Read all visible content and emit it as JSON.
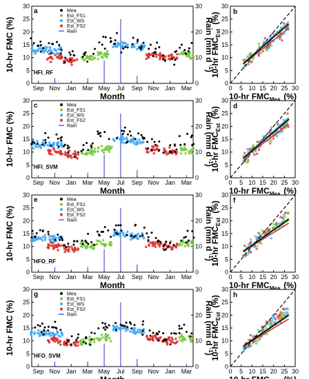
{
  "figure": {
    "colors": {
      "Mea": "#000000",
      "Est_FS1": "#7ac943",
      "Est_WS": "#3fa9f5",
      "Est_FS2": "#d9302f",
      "Rain": "#3333cc",
      "one_to_one": "#000000"
    },
    "ts_xlabel": "Month",
    "ts_ylabel": "10-hr FMC (%)",
    "ts_y2label": "Rain (mm d",
    "ts_y2label_sup": "-1",
    "ts_y2label_end": ")",
    "sc_xlabel": "10-hr FMC",
    "sc_xlabel_sub": "Mea",
    "sc_xlabel_end": "(%)",
    "sc_ylabel": "10-hr FMC",
    "sc_ylabel_sub": "Est",
    "sc_ylabel_end": "(%)",
    "yticks": [
      "0",
      "5",
      "10",
      "15",
      "20",
      "25",
      "30"
    ],
    "y2ticks": [
      "0",
      "10",
      "20",
      "30"
    ],
    "month_ticks": [
      "Sep",
      "Nov",
      "Jan",
      "Mar",
      "May",
      "Jul",
      "Sep",
      "Nov",
      "Jan",
      "Mar"
    ]
  },
  "chart_data": [
    {
      "type": "scatter",
      "panel": "a",
      "model": "HFI_RF",
      "x": [
        "Sep",
        "Nov",
        "Jan",
        "Mar",
        "May",
        "Jul",
        "Sep",
        "Nov",
        "Jan",
        "Mar"
      ],
      "ylim": [
        0,
        30
      ],
      "y2lim": [
        0,
        30
      ],
      "legend": [
        "Mea",
        "Est_FS1",
        "Est_WS",
        "Est_FS2",
        "Rain"
      ],
      "legend_position": "top-left",
      "series": [
        {
          "name": "Mea",
          "values": [
            15,
            14,
            11,
            11,
            16,
            16,
            16,
            13,
            11,
            14
          ]
        },
        {
          "name": "Est_FS1",
          "values": [
            null,
            null,
            null,
            10,
            11,
            null,
            null,
            null,
            null,
            11
          ]
        },
        {
          "name": "Est_WS",
          "values": [
            13,
            13,
            null,
            null,
            null,
            15,
            14,
            null,
            null,
            null
          ]
        },
        {
          "name": "Est_FS2",
          "values": [
            null,
            10,
            9,
            null,
            null,
            null,
            null,
            11,
            10,
            null
          ]
        },
        {
          "name": "Rain",
          "values": [
            1,
            2,
            1,
            2,
            9,
            25,
            3,
            1,
            1,
            1
          ]
        }
      ]
    },
    {
      "type": "scatter",
      "panel": "b",
      "xlim": [
        0,
        30
      ],
      "ylim": [
        0,
        30
      ],
      "one_to_one_line": true,
      "fit_lines": [
        {
          "name": "Est_FS1",
          "slope": 0.72,
          "intercept": 3.6
        },
        {
          "name": "Est_WS",
          "slope": 0.78,
          "intercept": 3.0
        },
        {
          "name": "Est_FS2",
          "slope": 0.66,
          "intercept": 3.6
        },
        {
          "name": "Mea",
          "slope": 0.74,
          "intercept": 3.2
        }
      ]
    },
    {
      "type": "scatter",
      "panel": "c",
      "model": "HFI_SVM",
      "x": [
        "Sep",
        "Nov",
        "Jan",
        "Mar",
        "May",
        "Jul",
        "Sep",
        "Nov",
        "Jan",
        "Mar"
      ],
      "ylim": [
        0,
        30
      ],
      "y2lim": [
        0,
        30
      ],
      "legend": [
        "Mea",
        "Est_FS1",
        "Est_WS",
        "Est_FS2",
        "Rain"
      ],
      "legend_position": "top-left",
      "series": [
        {
          "name": "Mea",
          "values": [
            15,
            14,
            11,
            11,
            16,
            16,
            16,
            13,
            11,
            14
          ]
        },
        {
          "name": "Est_FS1",
          "values": [
            null,
            null,
            null,
            10,
            11,
            null,
            null,
            null,
            null,
            11
          ]
        },
        {
          "name": "Est_WS",
          "values": [
            13,
            13,
            null,
            null,
            null,
            15,
            14,
            null,
            null,
            null
          ]
        },
        {
          "name": "Est_FS2",
          "values": [
            null,
            10,
            9,
            null,
            null,
            null,
            null,
            11,
            10,
            null
          ]
        },
        {
          "name": "Rain",
          "values": [
            1,
            2,
            1,
            2,
            9,
            25,
            3,
            1,
            1,
            1
          ]
        }
      ]
    },
    {
      "type": "scatter",
      "panel": "d",
      "xlim": [
        0,
        30
      ],
      "ylim": [
        0,
        30
      ],
      "one_to_one_line": true,
      "fit_lines": [
        {
          "name": "Est_FS1",
          "slope": 0.7,
          "intercept": 3.6
        },
        {
          "name": "Est_WS",
          "slope": 0.75,
          "intercept": 3.2
        },
        {
          "name": "Est_FS2",
          "slope": 0.62,
          "intercept": 4.0
        },
        {
          "name": "Mea",
          "slope": 0.72,
          "intercept": 3.3
        }
      ]
    },
    {
      "type": "scatter",
      "panel": "e",
      "model": "HFO_RF",
      "x": [
        "Sep",
        "Nov",
        "Jan",
        "Mar",
        "May",
        "Jul",
        "Sep",
        "Nov",
        "Jan",
        "Mar"
      ],
      "ylim": [
        0,
        30
      ],
      "y2lim": [
        0,
        30
      ],
      "legend": [
        "Mea",
        "Est_FS1",
        "Est_WS",
        "Est_FS2",
        "Rain"
      ],
      "legend_position": "top-left",
      "series": [
        {
          "name": "Mea",
          "values": [
            15,
            14,
            11,
            11,
            16,
            16,
            16,
            13,
            11,
            14
          ]
        },
        {
          "name": "Est_FS1",
          "values": [
            null,
            null,
            null,
            10,
            11,
            null,
            null,
            null,
            null,
            11
          ]
        },
        {
          "name": "Est_WS",
          "values": [
            13,
            13,
            null,
            null,
            null,
            15,
            14,
            null,
            null,
            null
          ]
        },
        {
          "name": "Est_FS2",
          "values": [
            null,
            10,
            9,
            null,
            null,
            null,
            null,
            11,
            10,
            null
          ]
        },
        {
          "name": "Rain",
          "values": [
            1,
            2,
            1,
            2,
            9,
            25,
            3,
            1,
            1,
            1
          ]
        }
      ]
    },
    {
      "type": "scatter",
      "panel": "f",
      "xlim": [
        0,
        30
      ],
      "ylim": [
        0,
        30
      ],
      "one_to_one_line": true,
      "fit_lines": [
        {
          "name": "Est_FS1",
          "slope": 0.62,
          "intercept": 4.2
        },
        {
          "name": "Est_WS",
          "slope": 0.58,
          "intercept": 4.8
        },
        {
          "name": "Est_FS2",
          "slope": 0.52,
          "intercept": 5.0
        },
        {
          "name": "Mea",
          "slope": 0.6,
          "intercept": 4.4
        }
      ]
    },
    {
      "type": "scatter",
      "panel": "g",
      "model": "HFO_SVM",
      "x": [
        "Sep",
        "Nov",
        "Jan",
        "Mar",
        "May",
        "Jul",
        "Sep",
        "Nov",
        "Jan",
        "Mar"
      ],
      "ylim": [
        0,
        30
      ],
      "y2lim": [
        0,
        30
      ],
      "legend": [
        "Mea",
        "Est_FS1",
        "Est_WS",
        "Est_FS2",
        "Rain"
      ],
      "legend_position": "top-left",
      "series": [
        {
          "name": "Mea",
          "values": [
            15,
            14,
            11,
            11,
            16,
            16,
            16,
            13,
            11,
            14
          ]
        },
        {
          "name": "Est_FS1",
          "values": [
            null,
            null,
            null,
            10,
            11,
            null,
            null,
            null,
            null,
            11
          ]
        },
        {
          "name": "Est_WS",
          "values": [
            13,
            13,
            null,
            null,
            null,
            15,
            14,
            null,
            null,
            null
          ]
        },
        {
          "name": "Est_FS2",
          "values": [
            null,
            10,
            9,
            null,
            null,
            null,
            null,
            11,
            10,
            null
          ]
        },
        {
          "name": "Rain",
          "values": [
            1,
            2,
            1,
            2,
            9,
            25,
            3,
            1,
            1,
            1
          ]
        }
      ]
    },
    {
      "type": "scatter",
      "panel": "h",
      "xlim": [
        0,
        30
      ],
      "ylim": [
        0,
        30
      ],
      "one_to_one_line": true,
      "fit_lines": [
        {
          "name": "Est_FS1",
          "slope": 0.6,
          "intercept": 4.2
        },
        {
          "name": "Est_WS",
          "slope": 0.56,
          "intercept": 4.6
        },
        {
          "name": "Est_FS2",
          "slope": 0.5,
          "intercept": 5.0
        },
        {
          "name": "Mea",
          "slope": 0.58,
          "intercept": 4.4
        }
      ]
    }
  ]
}
